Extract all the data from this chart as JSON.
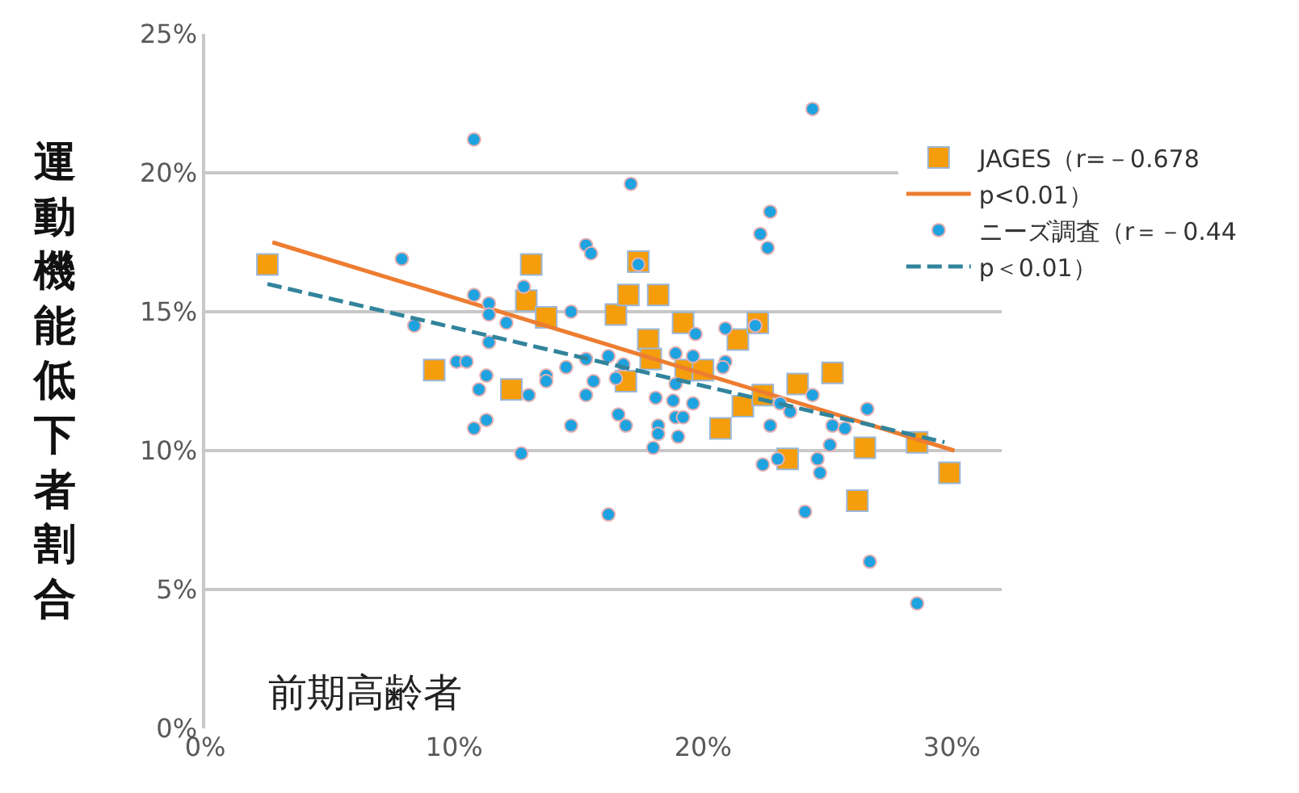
{
  "chart_data": {
    "type": "scatter",
    "ylabel": "運動機能低下者割合",
    "annotations": [
      "前期高齢者"
    ],
    "xlim": [
      0,
      32
    ],
    "xticks": [
      {
        "value": 0,
        "label": "0%"
      },
      {
        "value": 10,
        "label": "10%"
      },
      {
        "value": 20,
        "label": "20%"
      },
      {
        "value": 30,
        "label": "30%"
      }
    ],
    "ylim": [
      0,
      25
    ],
    "yticks": [
      {
        "value": 0,
        "label": "0%"
      },
      {
        "value": 5,
        "label": "5%"
      },
      {
        "value": 10,
        "label": "10%"
      },
      {
        "value": 15,
        "label": "15%"
      },
      {
        "value": 20,
        "label": "20%"
      },
      {
        "value": 25,
        "label": "25%"
      }
    ],
    "grid": "y",
    "legend": "top right",
    "series": [
      {
        "name": "JAGES（r=－0.678",
        "marker": "square",
        "color": "#f59d0a",
        "x": [
          2.5,
          9.2,
          12.3,
          12.9,
          13.1,
          13.7,
          16.5,
          16.9,
          17.0,
          17.4,
          17.8,
          17.9,
          18.2,
          19.2,
          19.3,
          20.0,
          20.7,
          21.4,
          21.6,
          22.2,
          22.4,
          23.4,
          23.8,
          25.2,
          26.2,
          26.5,
          28.6,
          29.9
        ],
        "values": [
          16.7,
          12.9,
          12.2,
          15.4,
          16.7,
          14.8,
          14.9,
          12.5,
          15.6,
          16.8,
          14.0,
          13.3,
          15.6,
          14.6,
          12.9,
          12.9,
          10.8,
          14.0,
          11.6,
          14.6,
          12.0,
          9.7,
          12.4,
          12.8,
          8.2,
          10.1,
          10.3,
          9.2
        ]
      },
      {
        "name": "p<0.01）",
        "type": "line",
        "line_style": "solid",
        "color": "#ed7d31",
        "x": [
          2.7,
          30.1
        ],
        "values": [
          17.5,
          10.0
        ]
      },
      {
        "name": "ニーズ調査（r＝－0.44",
        "marker": "circle",
        "color": "#1fa2e0",
        "x": [
          10.8,
          17.1,
          7.9,
          15.3,
          15.5,
          17.4,
          10.8,
          11.4,
          11.4,
          12.8,
          12.1,
          14.7,
          8.4,
          11.4,
          10.1,
          10.5,
          11.3,
          11.0,
          13.7,
          13.7,
          14.5,
          15.3,
          16.2,
          16.8,
          15.6,
          16.5,
          19.7,
          20.9,
          18.9,
          19.6,
          20.9,
          18.9,
          13.0,
          24.4,
          22.7,
          22.3,
          22.6,
          22.1,
          18.1,
          18.8,
          19.6,
          15.3,
          18.9,
          19.2,
          16.6,
          16.9,
          14.7,
          11.3,
          10.8,
          18.2,
          18.2,
          19.0,
          18.0,
          12.7,
          16.2,
          20.8,
          22.7,
          23.1,
          23.5,
          24.4,
          25.2,
          25.7,
          26.6,
          25.1,
          24.6,
          24.7,
          23.0,
          22.4,
          24.1,
          26.7,
          28.6
        ],
        "values": [
          21.2,
          19.6,
          16.9,
          17.4,
          17.1,
          16.7,
          15.6,
          15.3,
          14.9,
          15.9,
          14.6,
          15.0,
          14.5,
          13.9,
          13.2,
          13.2,
          12.7,
          12.2,
          12.7,
          12.5,
          13.0,
          13.3,
          13.4,
          13.1,
          12.5,
          12.6,
          14.2,
          14.4,
          13.5,
          13.4,
          13.2,
          12.4,
          12.0,
          22.3,
          18.6,
          17.8,
          17.3,
          14.5,
          11.9,
          11.8,
          11.7,
          12.0,
          11.2,
          11.2,
          11.3,
          10.9,
          10.9,
          11.1,
          10.8,
          10.9,
          10.6,
          10.5,
          10.1,
          9.9,
          7.7,
          13.0,
          10.9,
          11.7,
          11.4,
          12.0,
          10.9,
          10.8,
          11.5,
          10.2,
          9.7,
          9.2,
          9.7,
          9.5,
          7.8,
          6.0,
          4.5
        ]
      },
      {
        "name": "p＜0.01）",
        "type": "line",
        "line_style": "dashed",
        "color": "#31849b",
        "x": [
          2.5,
          29.7
        ],
        "values": [
          16.0,
          10.3
        ]
      }
    ]
  }
}
